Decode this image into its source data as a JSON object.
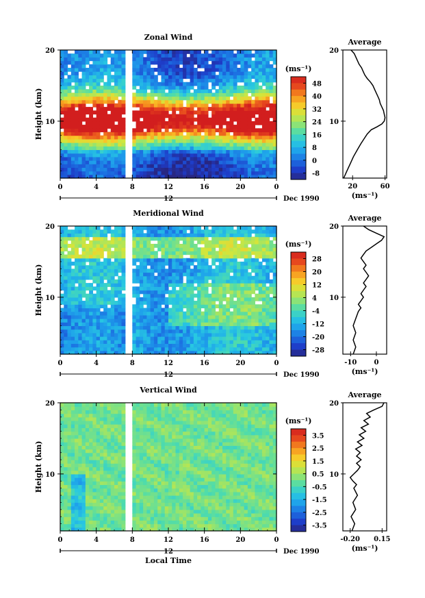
{
  "chart_data": [
    {
      "type": "heatmap",
      "title": "Zonal Wind",
      "ylabel": "Height (km)",
      "y_ticks": [
        "10",
        "20"
      ],
      "x_ticks": [
        "0",
        "4",
        "8",
        "12",
        "16",
        "20",
        "0"
      ],
      "date_center": "12",
      "date_label": "Dec 1990",
      "ylim": [
        2,
        20
      ],
      "colorbar": {
        "unit": "(ms⁻¹)",
        "ticks": [
          "48",
          "40",
          "32",
          "24",
          "16",
          "8",
          "0",
          "-8"
        ],
        "range": [
          -12,
          52
        ]
      },
      "profile": {
        "title": "Average",
        "x_ticks": [
          "20",
          "60"
        ],
        "xlim": [
          8,
          62
        ],
        "unit": "(ms⁻¹)",
        "points": [
          [
            9,
            2
          ],
          [
            13,
            3
          ],
          [
            17,
            4
          ],
          [
            21,
            5
          ],
          [
            26,
            6
          ],
          [
            30,
            6.8
          ],
          [
            34,
            7.5
          ],
          [
            38,
            8.2
          ],
          [
            43,
            8.8
          ],
          [
            50,
            9.2
          ],
          [
            56,
            9.6
          ],
          [
            59,
            10
          ],
          [
            60,
            10.5
          ],
          [
            59,
            11
          ],
          [
            58,
            11.5
          ],
          [
            56,
            12
          ],
          [
            54,
            12.5
          ],
          [
            53,
            13
          ],
          [
            51,
            13.5
          ],
          [
            49,
            14
          ],
          [
            47,
            14.5
          ],
          [
            45,
            15
          ],
          [
            42,
            15.5
          ],
          [
            38,
            16
          ],
          [
            35,
            16.5
          ],
          [
            33,
            17
          ],
          [
            31,
            17.5
          ],
          [
            28,
            18
          ],
          [
            26,
            18.5
          ],
          [
            24,
            19
          ],
          [
            22,
            19.5
          ],
          [
            18,
            20
          ]
        ]
      }
    },
    {
      "type": "heatmap",
      "title": "Meridional Wind",
      "ylabel": "Height (km)",
      "y_ticks": [
        "10",
        "20"
      ],
      "x_ticks": [
        "0",
        "4",
        "8",
        "12",
        "16",
        "20",
        "0"
      ],
      "date_center": "12",
      "date_label": "Dec 1990",
      "ylim": [
        2,
        20
      ],
      "colorbar": {
        "unit": "(ms⁻¹)",
        "ticks": [
          "28",
          "20",
          "12",
          "4",
          "-4",
          "-12",
          "-20",
          "-28"
        ],
        "range": [
          -32,
          32
        ]
      },
      "profile": {
        "title": "Average",
        "x_ticks": [
          "-10",
          "0"
        ],
        "xlim": [
          -13,
          4
        ],
        "unit": "(ms⁻¹)",
        "points": [
          [
            -9,
            2
          ],
          [
            -8,
            3
          ],
          [
            -9,
            4
          ],
          [
            -8,
            5
          ],
          [
            -9,
            6
          ],
          [
            -8,
            7
          ],
          [
            -7,
            8
          ],
          [
            -6,
            8.5
          ],
          [
            -7,
            9
          ],
          [
            -6,
            9.5
          ],
          [
            -5,
            10
          ],
          [
            -6,
            10.5
          ],
          [
            -5,
            11
          ],
          [
            -4,
            11.5
          ],
          [
            -5,
            12
          ],
          [
            -4,
            12.5
          ],
          [
            -3,
            13
          ],
          [
            -4,
            13.5
          ],
          [
            -5,
            14
          ],
          [
            -4,
            14.5
          ],
          [
            -5,
            15
          ],
          [
            -6,
            15.5
          ],
          [
            -5,
            16
          ],
          [
            -4,
            16.5
          ],
          [
            -2,
            17
          ],
          [
            0,
            17.5
          ],
          [
            2,
            18
          ],
          [
            3,
            18.5
          ],
          [
            0,
            19
          ],
          [
            -3,
            19.5
          ],
          [
            -5,
            20
          ]
        ]
      }
    },
    {
      "type": "heatmap",
      "title": "Vertical Wind",
      "ylabel": "Height (km)",
      "xlabel": "Local Time",
      "y_ticks": [
        "10",
        "20"
      ],
      "x_ticks": [
        "0",
        "4",
        "8",
        "12",
        "16",
        "20",
        "0"
      ],
      "date_center": "12",
      "date_label": "Dec 1990",
      "ylim": [
        2,
        20
      ],
      "colorbar": {
        "unit": "(ms⁻¹)",
        "ticks": [
          "3.5",
          "2.5",
          "1.5",
          "0.5",
          "-0.5",
          "-1.5",
          "-2.5",
          "-3.5"
        ],
        "range": [
          -4,
          4
        ]
      },
      "profile": {
        "title": "Average",
        "x_ticks": [
          "-0.20",
          "0.15"
        ],
        "xlim": [
          -0.28,
          0.2
        ],
        "unit": "(ms⁻¹)",
        "points": [
          [
            -0.18,
            2
          ],
          [
            -0.15,
            3
          ],
          [
            -0.19,
            4
          ],
          [
            -0.14,
            5
          ],
          [
            -0.17,
            6
          ],
          [
            -0.12,
            7
          ],
          [
            -0.16,
            8
          ],
          [
            -0.13,
            8.5
          ],
          [
            -0.17,
            9
          ],
          [
            -0.2,
            9.5
          ],
          [
            -0.16,
            10
          ],
          [
            -0.12,
            10.5
          ],
          [
            -0.09,
            11
          ],
          [
            -0.13,
            11.5
          ],
          [
            -0.08,
            12
          ],
          [
            -0.13,
            12.5
          ],
          [
            -0.09,
            13
          ],
          [
            -0.14,
            13.5
          ],
          [
            -0.07,
            14
          ],
          [
            -0.12,
            14.5
          ],
          [
            -0.05,
            15
          ],
          [
            -0.1,
            15.5
          ],
          [
            -0.03,
            16
          ],
          [
            -0.08,
            16.5
          ],
          [
            0,
            17
          ],
          [
            -0.05,
            17.5
          ],
          [
            0.02,
            18
          ],
          [
            -0.02,
            18.5
          ],
          [
            0.06,
            19
          ],
          [
            0.15,
            19.5
          ],
          [
            0.17,
            20
          ]
        ]
      }
    }
  ]
}
